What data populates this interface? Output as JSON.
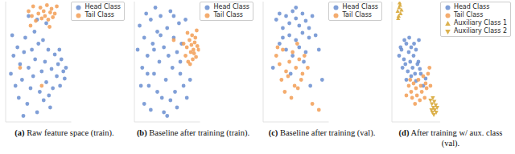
{
  "chart_data": [
    {
      "type": "scatter",
      "label": "(a)",
      "caption": "Raw feature space (train).",
      "xlim": [
        0,
        100
      ],
      "ylim": [
        0,
        100
      ],
      "tick_labels": false,
      "legend": "upper right",
      "series": [
        {
          "name": "Head Class",
          "color": "#6a8ed0",
          "marker": "circle",
          "x": [
            8,
            12,
            15,
            18,
            20,
            22,
            25,
            28,
            30,
            33,
            35,
            38,
            40,
            42,
            45,
            48,
            50,
            52,
            55,
            58,
            60,
            62,
            65,
            68,
            70,
            72,
            75,
            78,
            80,
            83,
            85,
            88,
            90,
            92,
            10,
            27,
            44,
            57,
            66,
            82,
            48,
            62,
            35
          ],
          "y": [
            40,
            55,
            30,
            62,
            20,
            48,
            35,
            58,
            70,
            15,
            45,
            28,
            60,
            38,
            52,
            8,
            65,
            25,
            42,
            18,
            50,
            33,
            60,
            12,
            44,
            28,
            56,
            38,
            48,
            30,
            52,
            42,
            36,
            45,
            72,
            5,
            75,
            68,
            22,
            60,
            85,
            82,
            88
          ]
        },
        {
          "name": "Tail Class",
          "color": "#f29d55",
          "marker": "circle",
          "x": [
            35,
            40,
            42,
            46,
            50,
            53,
            55,
            58,
            60,
            63,
            65,
            68,
            70,
            72,
            75,
            78,
            38,
            67,
            22,
            55
          ],
          "y": [
            92,
            88,
            96,
            84,
            90,
            95,
            86,
            92,
            88,
            97,
            85,
            91,
            94,
            87,
            90,
            96,
            80,
            79,
            45,
            30
          ]
        }
      ]
    },
    {
      "type": "scatter",
      "label": "(b)",
      "caption": "Baseline after training (train).",
      "xlim": [
        0,
        100
      ],
      "ylim": [
        0,
        100
      ],
      "tick_labels": false,
      "legend": "upper right",
      "series": [
        {
          "name": "Head Class",
          "color": "#6a8ed0",
          "marker": "circle",
          "x": [
            5,
            8,
            12,
            15,
            18,
            20,
            22,
            25,
            28,
            30,
            32,
            35,
            38,
            40,
            42,
            45,
            48,
            50,
            52,
            55,
            58,
            60,
            62,
            65,
            68,
            70,
            72,
            75,
            15,
            25,
            35,
            45,
            55,
            65,
            10,
            30,
            50,
            70,
            40,
            60,
            20,
            80,
            85,
            78
          ],
          "y": [
            60,
            80,
            45,
            70,
            90,
            55,
            30,
            85,
            65,
            40,
            95,
            75,
            50,
            88,
            20,
            62,
            35,
            78,
            55,
            92,
            45,
            70,
            25,
            58,
            82,
            40,
            65,
            30,
            15,
            10,
            25,
            8,
            18,
            12,
            30,
            60,
            5,
            50,
            72,
            88,
            40,
            20,
            35,
            85
          ]
        },
        {
          "name": "Tail Class",
          "color": "#f29d55",
          "marker": "circle",
          "x": [
            78,
            80,
            82,
            84,
            86,
            88,
            90,
            92,
            94,
            96,
            85,
            89,
            93,
            81,
            87,
            91,
            95,
            75,
            60,
            98
          ],
          "y": [
            55,
            62,
            50,
            68,
            58,
            72,
            60,
            66,
            54,
            63,
            48,
            52,
            70,
            74,
            64,
            57,
            76,
            65,
            68,
            60
          ]
        }
      ]
    },
    {
      "type": "scatter",
      "label": "(c)",
      "caption": "Baseline after training (val).",
      "xlim": [
        0,
        100
      ],
      "ylim": [
        0,
        100
      ],
      "tick_labels": false,
      "legend": "upper right",
      "series": [
        {
          "name": "Head Class",
          "color": "#6a8ed0",
          "marker": "circle",
          "x": [
            20,
            25,
            30,
            35,
            40,
            45,
            50,
            55,
            60,
            65,
            70,
            75,
            30,
            40,
            50,
            60,
            70,
            80,
            35,
            45,
            55,
            65,
            25,
            85,
            90,
            15,
            50,
            62,
            42,
            72
          ],
          "y": [
            85,
            90,
            78,
            88,
            82,
            92,
            86,
            80,
            90,
            84,
            78,
            88,
            70,
            72,
            68,
            74,
            70,
            72,
            60,
            55,
            62,
            58,
            65,
            60,
            35,
            45,
            95,
            50,
            40,
            30
          ]
        },
        {
          "name": "Tail Class",
          "color": "#f29d55",
          "marker": "circle",
          "x": [
            20,
            25,
            30,
            35,
            40,
            45,
            50,
            55,
            60,
            28,
            38,
            48,
            58,
            68,
            33,
            43,
            53,
            22,
            63,
            75,
            85,
            52
          ],
          "y": [
            55,
            48,
            60,
            42,
            50,
            58,
            45,
            52,
            40,
            35,
            38,
            30,
            35,
            45,
            25,
            20,
            28,
            62,
            55,
            15,
            10,
            65
          ]
        }
      ]
    },
    {
      "type": "scatter",
      "label": "(d)",
      "caption": "After training w/ aux. class (val).",
      "xlim": [
        0,
        100
      ],
      "ylim": [
        0,
        100
      ],
      "tick_labels": false,
      "legend": "upper right",
      "series": [
        {
          "name": "Head Class",
          "color": "#6a8ed0",
          "marker": "circle",
          "x": [
            15,
            20,
            25,
            30,
            35,
            40,
            45,
            50,
            55,
            22,
            28,
            33,
            38,
            43,
            48,
            53,
            58,
            18,
            26,
            36,
            46,
            56,
            30,
            40,
            50,
            60,
            65,
            70
          ],
          "y": [
            55,
            60,
            52,
            65,
            58,
            62,
            55,
            60,
            50,
            45,
            48,
            42,
            50,
            45,
            40,
            48,
            44,
            62,
            68,
            70,
            65,
            68,
            35,
            38,
            34,
            40,
            30,
            36
          ]
        },
        {
          "name": "Tail Class",
          "color": "#f29d55",
          "marker": "circle",
          "x": [
            35,
            40,
            45,
            50,
            55,
            60,
            65,
            70,
            75,
            42,
            52,
            62,
            72,
            48,
            58,
            68,
            38,
            78,
            30,
            80
          ],
          "y": [
            30,
            25,
            32,
            28,
            35,
            30,
            38,
            32,
            40,
            20,
            22,
            25,
            28,
            15,
            18,
            20,
            35,
            45,
            22,
            30
          ]
        },
        {
          "name": "Auxiliary Class 1",
          "color": "#d8a93a",
          "marker": "triangle-up",
          "x": [
            12,
            15,
            18,
            14,
            17,
            20,
            13,
            16
          ],
          "y": [
            92,
            95,
            90,
            88,
            97,
            93,
            86,
            99
          ]
        },
        {
          "name": "Auxiliary Class 2",
          "color": "#d8a93a",
          "marker": "triangle-down",
          "x": [
            80,
            83,
            86,
            89,
            92,
            82,
            85,
            88,
            91,
            94,
            87,
            84
          ],
          "y": [
            18,
            15,
            12,
            10,
            8,
            10,
            20,
            17,
            14,
            12,
            6,
            8
          ]
        }
      ]
    }
  ]
}
